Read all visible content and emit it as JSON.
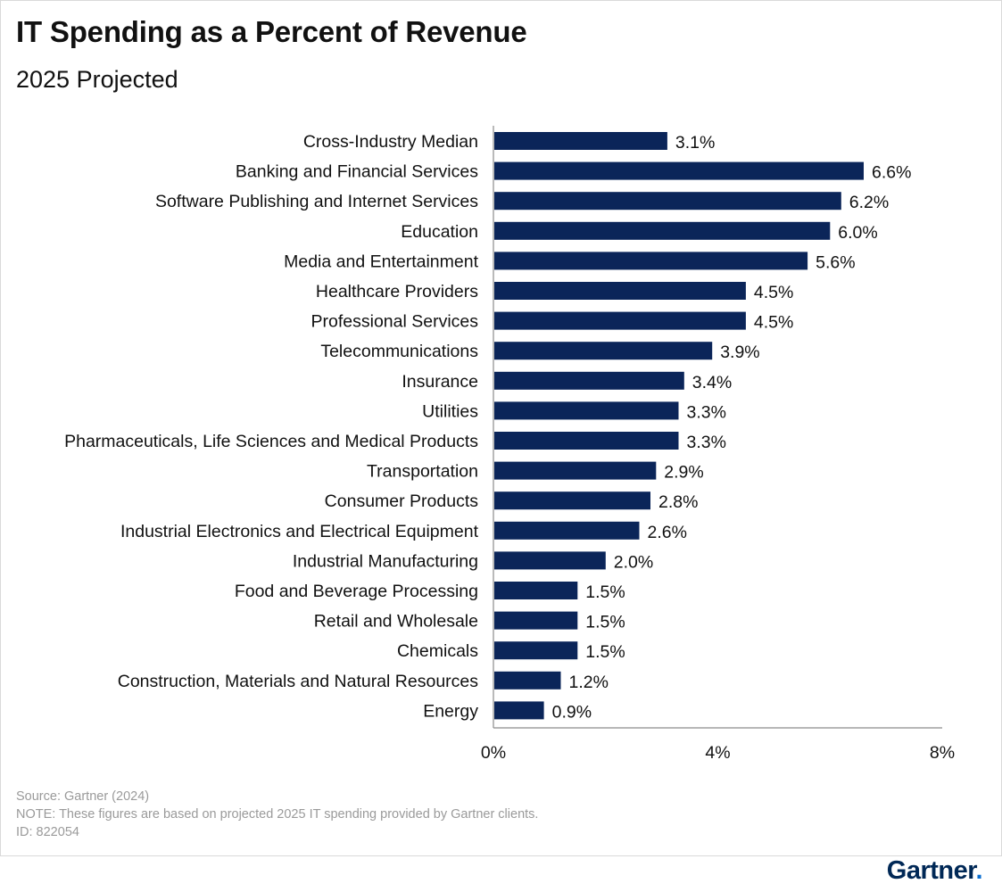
{
  "title": "IT Spending as a Percent of Revenue",
  "subtitle": "2025 Projected",
  "chart_data": {
    "type": "bar",
    "orientation": "horizontal",
    "categories": [
      "Cross-Industry Median",
      "Banking and Financial Services",
      "Software Publishing and Internet Services",
      "Education",
      "Media and Entertainment",
      "Healthcare Providers",
      "Professional Services",
      "Telecommunications",
      "Insurance",
      "Utilities",
      "Pharmaceuticals, Life Sciences and Medical Products",
      "Transportation",
      "Consumer Products",
      "Industrial Electronics and Electrical Equipment",
      "Industrial Manufacturing",
      "Food and Beverage Processing",
      "Retail and Wholesale",
      "Chemicals",
      "Construction, Materials and Natural Resources",
      "Energy"
    ],
    "values": [
      3.1,
      6.6,
      6.2,
      6.0,
      5.6,
      4.5,
      4.5,
      3.9,
      3.4,
      3.3,
      3.3,
      2.9,
      2.8,
      2.6,
      2.0,
      1.5,
      1.5,
      1.5,
      1.2,
      0.9
    ],
    "value_labels": [
      "3.1%",
      "6.6%",
      "6.2%",
      "6.0%",
      "5.6%",
      "4.5%",
      "4.5%",
      "3.9%",
      "3.4%",
      "3.3%",
      "3.3%",
      "2.9%",
      "2.8%",
      "2.6%",
      "2.0%",
      "1.5%",
      "1.5%",
      "1.5%",
      "1.2%",
      "0.9%"
    ],
    "xlim": [
      0,
      8
    ],
    "x_ticks": [
      0,
      4,
      8
    ],
    "x_tick_labels": [
      "0%",
      "4%",
      "8%"
    ],
    "xlabel": "",
    "ylabel": "",
    "grid": false,
    "bar_color": "#0b2559"
  },
  "footer": {
    "source": "Source: Gartner (2024)",
    "note": "NOTE: These figures are based on projected 2025 IT spending provided by Gartner clients.",
    "id": "ID: 822054"
  },
  "logo": {
    "text": "Gartner",
    "dot": "."
  }
}
